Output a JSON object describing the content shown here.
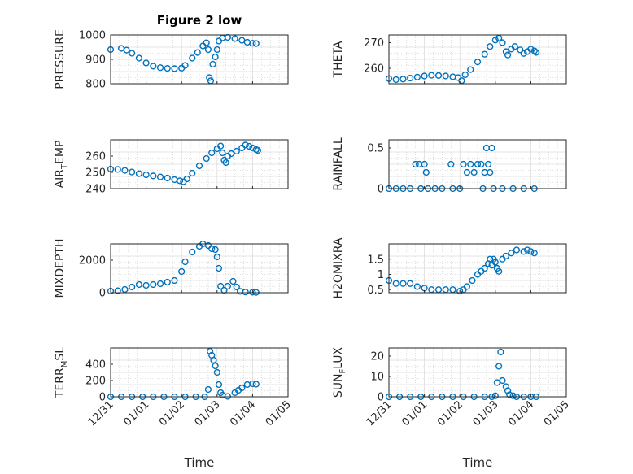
{
  "figure_title": "Figure 2 low",
  "theme": {
    "marker_color": "#0072BD"
  },
  "x_ticks": [
    "12/31",
    "01/01",
    "01/02",
    "01/03",
    "01/04",
    "01/05"
  ],
  "chart_data": [
    {
      "type": "scatter",
      "title": "Figure 2 low",
      "ylabel": "PRESSURE",
      "xlabel": "",
      "x_range_days": [
        0,
        5
      ],
      "ylim": [
        800,
        1000
      ],
      "y_ticks": [
        "800",
        "900",
        "1000"
      ],
      "grid": true,
      "series": [
        {
          "points": [
            [
              0.0,
              940
            ],
            [
              0.3,
              945
            ],
            [
              0.45,
              938
            ],
            [
              0.6,
              925
            ],
            [
              0.8,
              905
            ],
            [
              1.0,
              885
            ],
            [
              1.2,
              872
            ],
            [
              1.4,
              866
            ],
            [
              1.6,
              863
            ],
            [
              1.8,
              862
            ],
            [
              2.0,
              864
            ],
            [
              2.1,
              875
            ],
            [
              2.3,
              905
            ],
            [
              2.45,
              928
            ],
            [
              2.6,
              955
            ],
            [
              2.7,
              968
            ],
            [
              2.75,
              940
            ],
            [
              2.78,
              825
            ],
            [
              2.82,
              812
            ],
            [
              2.88,
              880
            ],
            [
              2.95,
              910
            ],
            [
              3.0,
              940
            ],
            [
              3.05,
              975
            ],
            [
              3.15,
              988
            ],
            [
              3.3,
              990
            ],
            [
              3.5,
              985
            ],
            [
              3.7,
              978
            ],
            [
              3.85,
              970
            ],
            [
              4.0,
              966
            ],
            [
              4.1,
              965
            ]
          ]
        }
      ]
    },
    {
      "type": "scatter",
      "ylabel": "THETA",
      "xlabel": "",
      "x_range_days": [
        0,
        5
      ],
      "ylim": [
        254,
        273
      ],
      "y_ticks": [
        "260",
        "270"
      ],
      "grid": true,
      "series": [
        {
          "points": [
            [
              0.0,
              256
            ],
            [
              0.2,
              255.6
            ],
            [
              0.4,
              255.8
            ],
            [
              0.6,
              256.2
            ],
            [
              0.8,
              256.6
            ],
            [
              1.0,
              257
            ],
            [
              1.2,
              257.3
            ],
            [
              1.4,
              257.2
            ],
            [
              1.6,
              257
            ],
            [
              1.8,
              256.7
            ],
            [
              1.95,
              256.4
            ],
            [
              2.05,
              255.2
            ],
            [
              2.15,
              257.5
            ],
            [
              2.3,
              259.5
            ],
            [
              2.5,
              262.5
            ],
            [
              2.7,
              265.5
            ],
            [
              2.85,
              268.5
            ],
            [
              3.0,
              271
            ],
            [
              3.1,
              271.8
            ],
            [
              3.2,
              270
            ],
            [
              3.3,
              266.5
            ],
            [
              3.35,
              265.2
            ],
            [
              3.45,
              267.5
            ],
            [
              3.55,
              268.5
            ],
            [
              3.7,
              267.2
            ],
            [
              3.8,
              265.8
            ],
            [
              3.9,
              266.5
            ],
            [
              4.0,
              267.5
            ],
            [
              4.1,
              266.8
            ],
            [
              4.15,
              266.2
            ]
          ]
        }
      ]
    },
    {
      "type": "scatter",
      "ylabel": "AIR_TEMP",
      "xlabel": "",
      "x_range_days": [
        0,
        5
      ],
      "ylim": [
        240,
        270
      ],
      "y_ticks": [
        "240",
        "250",
        "260"
      ],
      "grid": true,
      "series": [
        {
          "points": [
            [
              0.0,
              252
            ],
            [
              0.2,
              251.8
            ],
            [
              0.4,
              251.2
            ],
            [
              0.6,
              250.2
            ],
            [
              0.8,
              249.2
            ],
            [
              1.0,
              248.5
            ],
            [
              1.2,
              247.8
            ],
            [
              1.4,
              247.2
            ],
            [
              1.6,
              246.5
            ],
            [
              1.8,
              245.5
            ],
            [
              1.95,
              244.8
            ],
            [
              2.05,
              244.2
            ],
            [
              2.15,
              246
            ],
            [
              2.3,
              249.5
            ],
            [
              2.5,
              254
            ],
            [
              2.7,
              258.5
            ],
            [
              2.85,
              262
            ],
            [
              3.0,
              264.5
            ],
            [
              3.1,
              266.2
            ],
            [
              3.15,
              262
            ],
            [
              3.2,
              257.5
            ],
            [
              3.25,
              256
            ],
            [
              3.3,
              260
            ],
            [
              3.4,
              261.5
            ],
            [
              3.55,
              263
            ],
            [
              3.7,
              265
            ],
            [
              3.8,
              266.8
            ],
            [
              3.9,
              266
            ],
            [
              4.0,
              265
            ],
            [
              4.1,
              264
            ],
            [
              4.15,
              263.5
            ]
          ]
        }
      ]
    },
    {
      "type": "scatter",
      "ylabel": "RAINFALL",
      "xlabel": "",
      "x_range_days": [
        0,
        5
      ],
      "ylim": [
        0,
        0.6
      ],
      "y_ticks": [
        "0",
        "0.5"
      ],
      "grid": true,
      "series": [
        {
          "points": [
            [
              0.0,
              0
            ],
            [
              0.2,
              0
            ],
            [
              0.4,
              0
            ],
            [
              0.6,
              0
            ],
            [
              0.75,
              0.3
            ],
            [
              0.85,
              0.3
            ],
            [
              0.9,
              0
            ],
            [
              1.0,
              0.3
            ],
            [
              1.05,
              0.2
            ],
            [
              1.1,
              0
            ],
            [
              1.3,
              0
            ],
            [
              1.5,
              0
            ],
            [
              1.75,
              0.3
            ],
            [
              1.8,
              0
            ],
            [
              2.0,
              0
            ],
            [
              2.1,
              0.3
            ],
            [
              2.2,
              0.2
            ],
            [
              2.3,
              0.3
            ],
            [
              2.4,
              0.2
            ],
            [
              2.5,
              0.3
            ],
            [
              2.6,
              0.3
            ],
            [
              2.65,
              0
            ],
            [
              2.7,
              0.2
            ],
            [
              2.75,
              0.5
            ],
            [
              2.8,
              0.3
            ],
            [
              2.85,
              0.2
            ],
            [
              2.9,
              0.5
            ],
            [
              2.95,
              0
            ],
            [
              3.2,
              0
            ],
            [
              3.5,
              0
            ],
            [
              3.8,
              0
            ],
            [
              4.1,
              0
            ]
          ]
        }
      ]
    },
    {
      "type": "scatter",
      "ylabel": "MIXDEPTH",
      "xlabel": "",
      "x_range_days": [
        0,
        5
      ],
      "ylim": [
        0,
        3000
      ],
      "y_ticks": [
        "0",
        "2000"
      ],
      "grid": true,
      "series": [
        {
          "points": [
            [
              0.0,
              100
            ],
            [
              0.2,
              120
            ],
            [
              0.4,
              200
            ],
            [
              0.6,
              350
            ],
            [
              0.8,
              500
            ],
            [
              1.0,
              450
            ],
            [
              1.2,
              500
            ],
            [
              1.4,
              550
            ],
            [
              1.6,
              650
            ],
            [
              1.8,
              750
            ],
            [
              2.0,
              1300
            ],
            [
              2.1,
              1900
            ],
            [
              2.3,
              2500
            ],
            [
              2.5,
              2850
            ],
            [
              2.6,
              3000
            ],
            [
              2.75,
              2900
            ],
            [
              2.85,
              2700
            ],
            [
              2.95,
              2650
            ],
            [
              3.0,
              2200
            ],
            [
              3.05,
              1500
            ],
            [
              3.1,
              400
            ],
            [
              3.2,
              150
            ],
            [
              3.3,
              400
            ],
            [
              3.45,
              700
            ],
            [
              3.55,
              350
            ],
            [
              3.65,
              80
            ],
            [
              3.8,
              40
            ],
            [
              4.0,
              30
            ],
            [
              4.1,
              20
            ]
          ]
        }
      ]
    },
    {
      "type": "scatter",
      "ylabel": "H2OMIXRA",
      "xlabel": "",
      "x_range_days": [
        0,
        5
      ],
      "ylim": [
        0.4,
        2.0
      ],
      "y_ticks": [
        "0.5",
        "1",
        "1.5"
      ],
      "grid": true,
      "series": [
        {
          "points": [
            [
              0.0,
              0.8
            ],
            [
              0.2,
              0.7
            ],
            [
              0.4,
              0.7
            ],
            [
              0.6,
              0.7
            ],
            [
              0.8,
              0.6
            ],
            [
              1.0,
              0.55
            ],
            [
              1.2,
              0.5
            ],
            [
              1.4,
              0.5
            ],
            [
              1.6,
              0.5
            ],
            [
              1.8,
              0.5
            ],
            [
              2.0,
              0.45
            ],
            [
              2.1,
              0.5
            ],
            [
              2.2,
              0.6
            ],
            [
              2.35,
              0.8
            ],
            [
              2.5,
              1.0
            ],
            [
              2.6,
              1.1
            ],
            [
              2.7,
              1.2
            ],
            [
              2.8,
              1.35
            ],
            [
              2.85,
              1.5
            ],
            [
              2.9,
              1.3
            ],
            [
              2.95,
              1.5
            ],
            [
              3.0,
              1.4
            ],
            [
              3.05,
              1.2
            ],
            [
              3.1,
              1.1
            ],
            [
              3.2,
              1.5
            ],
            [
              3.3,
              1.6
            ],
            [
              3.45,
              1.7
            ],
            [
              3.6,
              1.8
            ],
            [
              3.8,
              1.75
            ],
            [
              3.9,
              1.8
            ],
            [
              4.0,
              1.75
            ],
            [
              4.1,
              1.7
            ]
          ]
        }
      ]
    },
    {
      "type": "scatter",
      "ylabel": "TERR_MSL",
      "xlabel": "Time",
      "x_range_days": [
        0,
        5
      ],
      "ylim": [
        0,
        600
      ],
      "y_ticks": [
        "0",
        "200",
        "400"
      ],
      "grid": true,
      "series": [
        {
          "points": [
            [
              0.0,
              0
            ],
            [
              0.3,
              0
            ],
            [
              0.6,
              0
            ],
            [
              0.9,
              0
            ],
            [
              1.2,
              0
            ],
            [
              1.5,
              0
            ],
            [
              1.8,
              0
            ],
            [
              2.1,
              0
            ],
            [
              2.4,
              0
            ],
            [
              2.65,
              0
            ],
            [
              2.75,
              90
            ],
            [
              2.8,
              560
            ],
            [
              2.85,
              510
            ],
            [
              2.9,
              450
            ],
            [
              2.95,
              380
            ],
            [
              3.0,
              300
            ],
            [
              3.05,
              150
            ],
            [
              3.1,
              50
            ],
            [
              3.15,
              20
            ],
            [
              3.3,
              5
            ],
            [
              3.5,
              50
            ],
            [
              3.6,
              80
            ],
            [
              3.7,
              110
            ],
            [
              3.85,
              150
            ],
            [
              4.0,
              160
            ],
            [
              4.1,
              155
            ]
          ]
        }
      ]
    },
    {
      "type": "scatter",
      "ylabel": "SUN_FLUX",
      "xlabel": "Time",
      "x_range_days": [
        0,
        5
      ],
      "ylim": [
        0,
        24
      ],
      "y_ticks": [
        "0",
        "10",
        "20"
      ],
      "grid": true,
      "series": [
        {
          "points": [
            [
              0.0,
              0
            ],
            [
              0.3,
              0
            ],
            [
              0.6,
              0
            ],
            [
              0.9,
              0
            ],
            [
              1.2,
              0
            ],
            [
              1.5,
              0
            ],
            [
              1.8,
              0
            ],
            [
              2.1,
              0
            ],
            [
              2.4,
              0
            ],
            [
              2.7,
              0
            ],
            [
              2.9,
              0
            ],
            [
              3.0,
              0.5
            ],
            [
              3.05,
              7
            ],
            [
              3.1,
              15
            ],
            [
              3.15,
              22
            ],
            [
              3.2,
              8
            ],
            [
              3.3,
              5
            ],
            [
              3.35,
              3
            ],
            [
              3.4,
              1
            ],
            [
              3.5,
              0.5
            ],
            [
              3.6,
              0
            ],
            [
              3.8,
              0
            ],
            [
              4.0,
              0
            ],
            [
              4.15,
              0
            ]
          ]
        }
      ]
    }
  ]
}
